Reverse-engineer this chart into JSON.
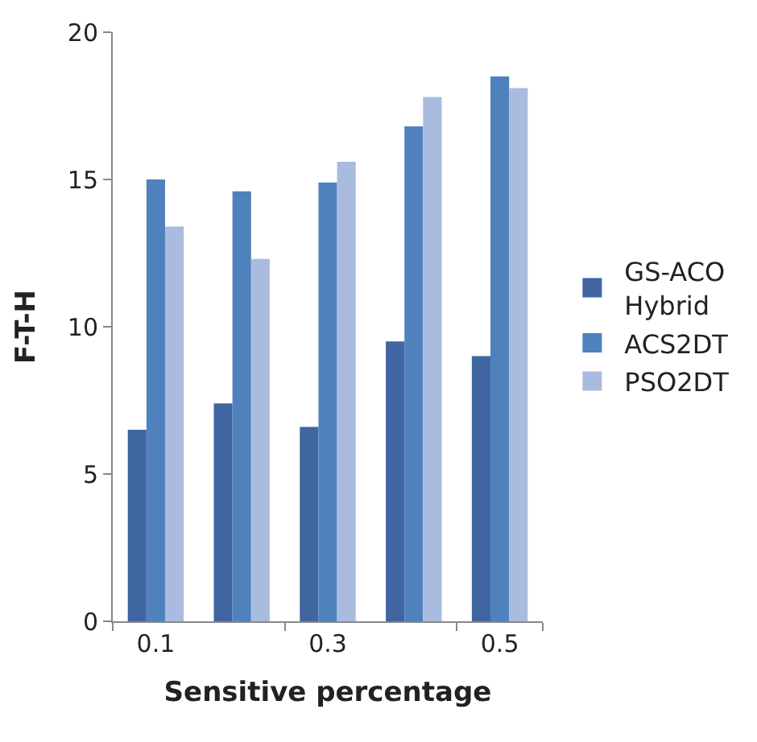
{
  "chart_data": {
    "type": "bar",
    "xlabel": "Sensitive percentage",
    "ylabel": "F-T-H",
    "categories": [
      "0.1",
      null,
      "0.3",
      null,
      "0.5"
    ],
    "series": [
      {
        "name": "GS-ACO Hybrid",
        "color": "#3f66a0",
        "values": [
          6.5,
          7.4,
          6.6,
          9.5,
          9.0
        ]
      },
      {
        "name": "ACS2DT",
        "color": "#4f81bd",
        "values": [
          15.0,
          14.6,
          14.9,
          16.8,
          18.5
        ]
      },
      {
        "name": "PSO2DT",
        "color": "#a9bce0",
        "values": [
          13.4,
          12.3,
          15.6,
          17.8,
          18.1
        ]
      }
    ],
    "ylim": [
      0,
      20
    ],
    "yticks": [
      0,
      5,
      10,
      15,
      20
    ],
    "legend": "right"
  }
}
